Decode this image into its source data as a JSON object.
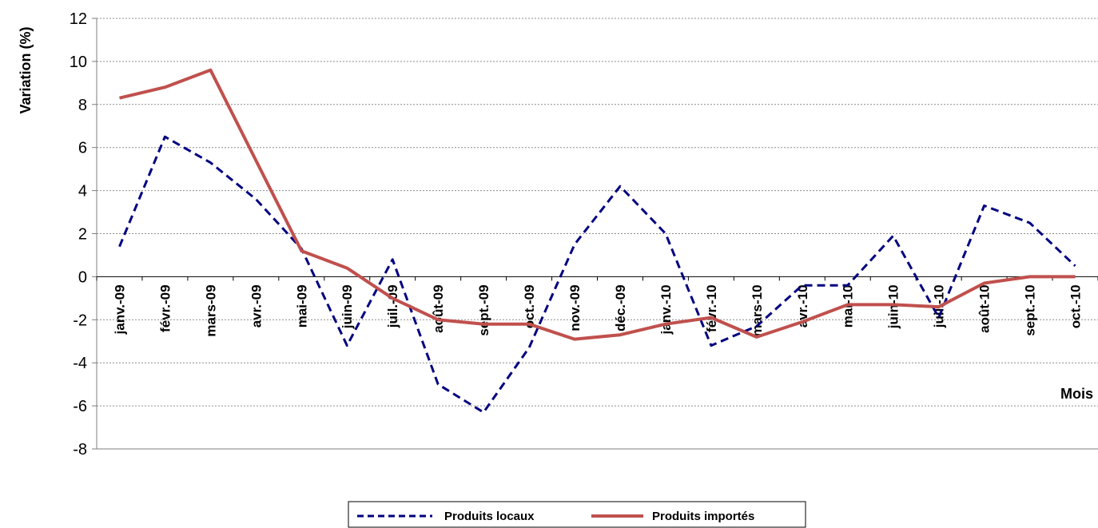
{
  "chart_data": {
    "type": "line",
    "ylabel": "Variation (%)",
    "xlabel": "Mois",
    "ylim": [
      -8,
      12
    ],
    "yticks": [
      -8,
      -6,
      -4,
      -2,
      0,
      2,
      4,
      6,
      8,
      10,
      12
    ],
    "grid": true,
    "legend_position": "bottom",
    "categories": [
      "janv.-09",
      "févr.-09",
      "mars-09",
      "avr.-09",
      "mai-09",
      "juin-09",
      "juil.-09",
      "août-09",
      "sept.-09",
      "oct.-09",
      "nov.-09",
      "déc.-09",
      "janv.-10",
      "févr.-10",
      "mars-10",
      "avr.-10",
      "mai-10",
      "juin-10",
      "juil.-10",
      "août-10",
      "sept.-10",
      "oct.-10"
    ],
    "series": [
      {
        "name": "Produits locaux",
        "color": "#000080",
        "style": "dashed",
        "values": [
          1.4,
          6.5,
          5.3,
          3.6,
          1.3,
          -3.2,
          0.8,
          -5.0,
          -6.3,
          -3.3,
          1.5,
          4.2,
          2.0,
          -3.2,
          -2.3,
          -0.4,
          -0.4,
          1.9,
          -1.9,
          3.3,
          2.5,
          0.5
        ]
      },
      {
        "name": "Produits importés",
        "color": "#C0504D",
        "style": "solid",
        "values": [
          8.3,
          8.8,
          9.6,
          5.4,
          1.2,
          0.4,
          -1.0,
          -2.0,
          -2.2,
          -2.2,
          -2.9,
          -2.7,
          -2.2,
          -1.9,
          -2.8,
          -2.1,
          -1.3,
          -1.3,
          -1.4,
          -0.3,
          0.0,
          0.0
        ]
      }
    ]
  }
}
